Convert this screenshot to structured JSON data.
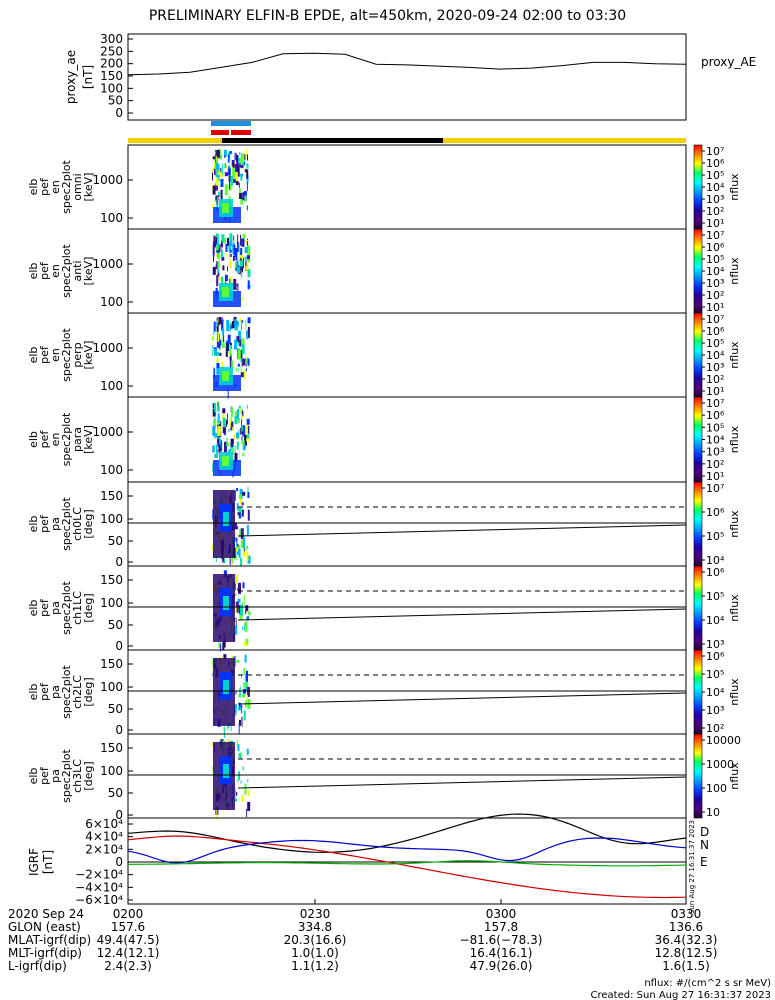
{
  "title": "PRELIMINARY ELFIN-B EPDE, alt=450km, 2020-09-24 02:00 to 03:30",
  "chart_data": {
    "type": "spectrogram",
    "time_range": [
      "2020-09-24 02:00",
      "2020-09-24 03:30"
    ],
    "panels": [
      {
        "id": "proxy_ae",
        "ylabel": [
          "proxy_ae",
          "[nT]"
        ],
        "legend": "proxy_AE",
        "yticks": [
          "300",
          "250",
          "200",
          "150",
          "100",
          "50",
          "0"
        ],
        "ylim": [
          0,
          300
        ],
        "series": {
          "x": [
            0,
            5,
            10,
            15,
            20,
            25,
            30,
            35,
            40,
            45,
            50,
            55,
            60,
            65,
            70,
            75,
            80,
            85,
            90
          ],
          "y": [
            155,
            158,
            165,
            185,
            205,
            240,
            242,
            238,
            198,
            195,
            190,
            185,
            178,
            182,
            192,
            205,
            205,
            200,
            198
          ]
        }
      },
      {
        "id": "omni",
        "ylabel": [
          "elb",
          "pef",
          "en",
          "spec2plot",
          "omni",
          "[keV]"
        ],
        "yticks": [
          "1000",
          "100"
        ],
        "colorbar": "flux"
      },
      {
        "id": "anti",
        "ylabel": [
          "elb",
          "pef",
          "en",
          "spec2plot",
          "anti",
          "[keV]"
        ],
        "yticks": [
          "1000",
          "100"
        ],
        "colorbar": "flux"
      },
      {
        "id": "perp",
        "ylabel": [
          "elb",
          "pef",
          "en",
          "spec2plot",
          "perp",
          "[keV]"
        ],
        "yticks": [
          "1000",
          "100"
        ],
        "colorbar": "flux"
      },
      {
        "id": "para",
        "ylabel": [
          "elb",
          "pef",
          "en",
          "spec2plot",
          "para",
          "[keV]"
        ],
        "yticks": [
          "1000",
          "100"
        ],
        "colorbar": "flux"
      },
      {
        "id": "ch0LC",
        "ylabel": [
          "elb",
          "pef",
          "pa",
          "spec2plot",
          "ch0LC",
          "[deg]"
        ],
        "yticks": [
          "150",
          "100",
          "50",
          "0"
        ],
        "colorbar": "pa0"
      },
      {
        "id": "ch1LC",
        "ylabel": [
          "elb",
          "pef",
          "pa",
          "spec2plot",
          "ch1LC",
          "[deg]"
        ],
        "yticks": [
          "150",
          "100",
          "50",
          "0"
        ],
        "colorbar": "pa1"
      },
      {
        "id": "ch2LC",
        "ylabel": [
          "elb",
          "pef",
          "pa",
          "spec2plot",
          "ch2LC",
          "[deg]"
        ],
        "yticks": [
          "150",
          "100",
          "50",
          "0"
        ],
        "colorbar": "pa2"
      },
      {
        "id": "ch3LC",
        "ylabel": [
          "elb",
          "pef",
          "pa",
          "spec2plot",
          "ch3LC",
          "[deg]"
        ],
        "yticks": [
          "150",
          "100",
          "50",
          "0"
        ],
        "colorbar": "pa3"
      },
      {
        "id": "igrf",
        "ylabel": [
          "IGRF",
          "[nT]"
        ],
        "yticks": [
          "6×10⁴",
          "4×10⁴",
          "2×10⁴",
          "0",
          "−2×10⁴",
          "−4×10⁴",
          "−6×10⁴"
        ],
        "ylim": [
          -60000,
          60000
        ],
        "legend": [
          "D",
          "N",
          "E"
        ],
        "colors": {
          "black": "#000000",
          "red": "#d00000",
          "blue": "#0000cc",
          "green": "#00b000"
        }
      }
    ],
    "colorbars": {
      "flux": {
        "label": "nflux",
        "ticks": [
          "10⁷",
          "10⁶",
          "10⁵",
          "10⁴",
          "10³",
          "10²",
          "10¹"
        ]
      },
      "pa0": {
        "label": "nflux",
        "ticks": [
          "10⁷",
          "10⁶",
          "10⁵",
          "10⁴"
        ]
      },
      "pa1": {
        "label": "nflux",
        "ticks": [
          "10⁶",
          "10⁵",
          "10⁴",
          "10³"
        ]
      },
      "pa2": {
        "label": "nflux",
        "ticks": [
          "10⁶",
          "10⁵",
          "10⁴",
          "10³",
          "10²"
        ]
      },
      "pa3": {
        "label": "nflux",
        "ticks": [
          "10000",
          "1000",
          "100",
          "10"
        ]
      }
    },
    "footer": {
      "rows": [
        {
          "label": "2020 Sep 24",
          "values": [
            "0200",
            "0230",
            "0300",
            "0330"
          ]
        },
        {
          "label": "GLON (east)",
          "values": [
            "157.6",
            "334.8",
            "157.8",
            "136.6"
          ]
        },
        {
          "label": "MLAT-igrf(dip)",
          "values": [
            "49.4(47.5)",
            "20.3(16.6)",
            "−81.6(−78.3)",
            "36.4(32.3)"
          ]
        },
        {
          "label": "MLT-igrf(dip)",
          "values": [
            "12.4(12.1)",
            "1.0(1.0)",
            "16.4(16.1)",
            "12.8(12.5)"
          ]
        },
        {
          "label": "L-igrf(dip)",
          "values": [
            "2.4(2.3)",
            "1.1(1.2)",
            "47.9(26.0)",
            "1.6(1.5)"
          ]
        }
      ],
      "units_note": "nflux: #/(cm^2 s sr MeV)",
      "created": "Created: Sun Aug 27 16:31:37 2023",
      "side_stamp": "Sun Aug 27 16:31:37 2023"
    }
  }
}
